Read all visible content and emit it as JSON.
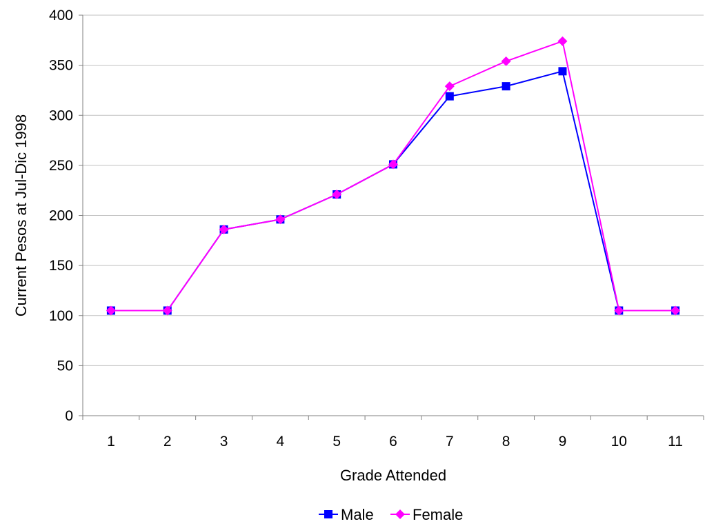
{
  "chart_data": {
    "type": "line",
    "title": "",
    "xlabel": "Grade Attended",
    "ylabel": "Current Pesos at Jul-Dic 1998",
    "categories": [
      "1",
      "2",
      "3",
      "4",
      "5",
      "6",
      "7",
      "8",
      "9",
      "10",
      "11"
    ],
    "ylim": [
      0,
      400
    ],
    "yticks": [
      "0",
      "50",
      "100",
      "150",
      "200",
      "250",
      "300",
      "350",
      "400"
    ],
    "grid": "horizontal",
    "legend_position": "bottom",
    "series": [
      {
        "name": "Male",
        "marker": "square",
        "color": "#0000FF",
        "values": [
          105,
          105,
          186,
          196,
          221,
          251,
          319,
          329,
          344,
          105,
          105
        ]
      },
      {
        "name": "Female",
        "marker": "diamond",
        "color": "#FF00FF",
        "values": [
          105,
          105,
          186,
          196,
          221,
          251,
          329,
          354,
          374,
          105,
          105
        ]
      }
    ]
  }
}
